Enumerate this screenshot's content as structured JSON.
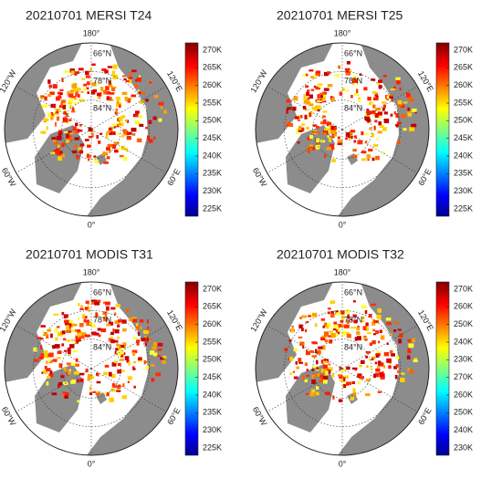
{
  "panels": [
    {
      "title": "20210701 MERSI T24",
      "longitudes": [
        "180°",
        "120°E",
        "60°E",
        "0°",
        "60°W",
        "120°W"
      ],
      "latitudes": [
        "66°N",
        "78°N",
        "84°N"
      ],
      "colorbar": [
        "270K",
        "265K",
        "260K",
        "255K",
        "250K",
        "245K",
        "240K",
        "235K",
        "230K",
        "225K"
      ]
    },
    {
      "title": "20210701 MERSI T25",
      "longitudes": [
        "180°",
        "120°E",
        "60°E",
        "0°",
        "60°W",
        "120°W"
      ],
      "latitudes": [
        "66°N",
        "78°N",
        "84°N"
      ],
      "colorbar": [
        "270K",
        "265K",
        "260K",
        "255K",
        "250K",
        "245K",
        "240K",
        "235K",
        "230K",
        "225K"
      ]
    },
    {
      "title": "20210701 MODIS T31",
      "longitudes": [
        "180°",
        "120°E",
        "60°E",
        "0°",
        "60°W",
        "120°W"
      ],
      "latitudes": [
        "66°N",
        "78°N",
        "84°N"
      ],
      "colorbar": [
        "270K",
        "265K",
        "260K",
        "255K",
        "250K",
        "245K",
        "240K",
        "235K",
        "230K",
        "225K"
      ]
    },
    {
      "title": "20210701 MODIS T32",
      "longitudes": [
        "180°",
        "120°E",
        "60°E",
        "0°",
        "60°W",
        "120°W"
      ],
      "latitudes": [
        "66°N",
        "78°N",
        "84°N"
      ],
      "colorbar": [
        "270K",
        "260K",
        "250K",
        "240K",
        "230K",
        "270K",
        "260K",
        "250K",
        "240K",
        "230K"
      ]
    }
  ]
}
